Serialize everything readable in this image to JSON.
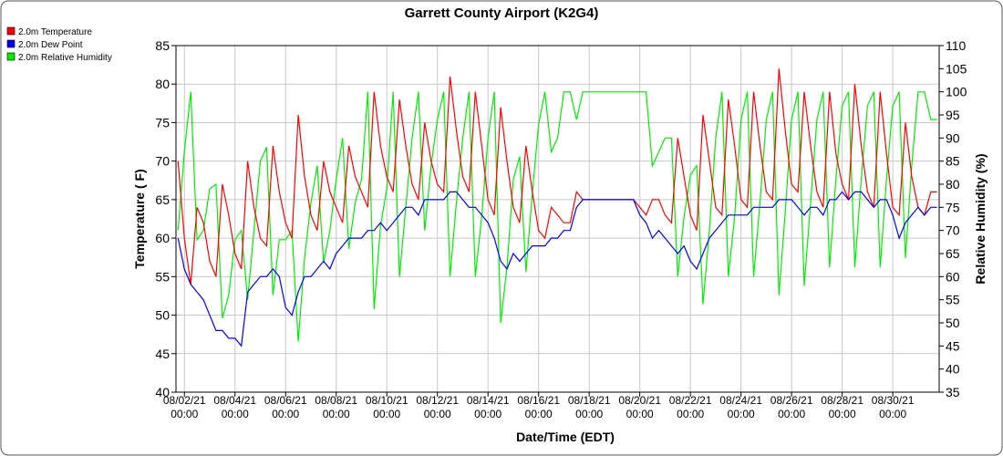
{
  "chart_data": {
    "type": "line",
    "title": "Garrett County Airport (K2G4)",
    "x_label": "Date/Time (EDT)",
    "y_label": "Temperature ( F)",
    "y2_label": "Relative Humidity (%)",
    "xlim": [
      "08/01/21 16:00",
      "08/31/21 20:00"
    ],
    "xticks": [
      "08/02/21 00:00",
      "08/04/21 00:00",
      "08/06/21 00:00",
      "08/08/21 00:00",
      "08/10/21 00:00",
      "08/12/21 00:00",
      "08/14/21 00:00",
      "08/16/21 00:00",
      "08/18/21 00:00",
      "08/20/21 00:00",
      "08/22/21 00:00",
      "08/24/21 00:00",
      "08/26/21 00:00",
      "08/28/21 00:00",
      "08/30/21 00:00"
    ],
    "ylim": [
      40,
      85
    ],
    "yticks": [
      40,
      45,
      50,
      55,
      60,
      65,
      70,
      75,
      80,
      85
    ],
    "y2lim": [
      35,
      110
    ],
    "y2ticks": [
      35,
      40,
      45,
      50,
      55,
      60,
      65,
      70,
      75,
      80,
      85,
      90,
      95,
      100,
      105,
      110
    ],
    "grid": true,
    "legend": "top-left",
    "x": [
      "08/01/21 18:00",
      "08/02/21 00:00",
      "08/02/21 06:00",
      "08/02/21 12:00",
      "08/02/21 18:00",
      "08/03/21 00:00",
      "08/03/21 06:00",
      "08/03/21 12:00",
      "08/03/21 18:00",
      "08/04/21 00:00",
      "08/04/21 06:00",
      "08/04/21 12:00",
      "08/04/21 18:00",
      "08/05/21 00:00",
      "08/05/21 06:00",
      "08/05/21 12:00",
      "08/05/21 18:00",
      "08/06/21 00:00",
      "08/06/21 06:00",
      "08/06/21 12:00",
      "08/06/21 18:00",
      "08/07/21 00:00",
      "08/07/21 06:00",
      "08/07/21 12:00",
      "08/07/21 18:00",
      "08/08/21 00:00",
      "08/08/21 06:00",
      "08/08/21 12:00",
      "08/08/21 18:00",
      "08/09/21 00:00",
      "08/09/21 06:00",
      "08/09/21 12:00",
      "08/09/21 18:00",
      "08/10/21 00:00",
      "08/10/21 06:00",
      "08/10/21 12:00",
      "08/10/21 18:00",
      "08/11/21 00:00",
      "08/11/21 06:00",
      "08/11/21 12:00",
      "08/11/21 18:00",
      "08/12/21 00:00",
      "08/12/21 06:00",
      "08/12/21 12:00",
      "08/12/21 18:00",
      "08/13/21 00:00",
      "08/13/21 06:00",
      "08/13/21 12:00",
      "08/13/21 18:00",
      "08/14/21 00:00",
      "08/14/21 06:00",
      "08/14/21 12:00",
      "08/14/21 18:00",
      "08/15/21 00:00",
      "08/15/21 06:00",
      "08/15/21 12:00",
      "08/15/21 18:00",
      "08/16/21 00:00",
      "08/16/21 06:00",
      "08/16/21 12:00",
      "08/16/21 18:00",
      "08/17/21 00:00",
      "08/17/21 06:00",
      "08/17/21 12:00",
      "08/17/21 18:00",
      "08/18/21 00:00",
      "08/18/21 06:00",
      "08/18/21 12:00",
      "08/18/21 18:00",
      "08/19/21 00:00",
      "08/19/21 06:00",
      "08/19/21 12:00",
      "08/19/21 18:00",
      "08/20/21 00:00",
      "08/20/21 06:00",
      "08/20/21 12:00",
      "08/20/21 18:00",
      "08/21/21 00:00",
      "08/21/21 06:00",
      "08/21/21 12:00",
      "08/21/21 18:00",
      "08/22/21 00:00",
      "08/22/21 06:00",
      "08/22/21 12:00",
      "08/22/21 18:00",
      "08/23/21 00:00",
      "08/23/21 06:00",
      "08/23/21 12:00",
      "08/23/21 18:00",
      "08/24/21 00:00",
      "08/24/21 06:00",
      "08/24/21 12:00",
      "08/24/21 18:00",
      "08/25/21 00:00",
      "08/25/21 06:00",
      "08/25/21 12:00",
      "08/25/21 18:00",
      "08/26/21 00:00",
      "08/26/21 06:00",
      "08/26/21 12:00",
      "08/26/21 18:00",
      "08/27/21 00:00",
      "08/27/21 06:00",
      "08/27/21 12:00",
      "08/27/21 18:00",
      "08/28/21 00:00",
      "08/28/21 06:00",
      "08/28/21 12:00",
      "08/28/21 18:00",
      "08/29/21 00:00",
      "08/29/21 06:00",
      "08/29/21 12:00",
      "08/29/21 18:00",
      "08/30/21 00:00",
      "08/30/21 06:00",
      "08/30/21 12:00",
      "08/30/21 18:00",
      "08/31/21 00:00",
      "08/31/21 06:00",
      "08/31/21 12:00",
      "08/31/21 18:00"
    ],
    "series": [
      {
        "name": "2.0m Temperature",
        "color": "#ff0000",
        "values": [
          70,
          60,
          54,
          64,
          62,
          57,
          55,
          67,
          63,
          58,
          56,
          70,
          64,
          60,
          59,
          72,
          66,
          62,
          60,
          76,
          68,
          63,
          61,
          70,
          66,
          64,
          62,
          72,
          68,
          66,
          64,
          79,
          72,
          68,
          66,
          78,
          72,
          67,
          65,
          75,
          70,
          67,
          66,
          81,
          74,
          68,
          66,
          79,
          72,
          65,
          63,
          77,
          70,
          64,
          62,
          72,
          66,
          61,
          60,
          64,
          63,
          62,
          62,
          66,
          65,
          65,
          65,
          65,
          65,
          65,
          65,
          65,
          65,
          64,
          63,
          65,
          65,
          63,
          62,
          73,
          68,
          63,
          61,
          76,
          70,
          64,
          63,
          78,
          72,
          65,
          64,
          79,
          72,
          66,
          65,
          82,
          74,
          67,
          66,
          79,
          72,
          66,
          64,
          79,
          71,
          67,
          65,
          80,
          72,
          66,
          64,
          79,
          71,
          64,
          63,
          75,
          68,
          64,
          63,
          66,
          66
        ]
      },
      {
        "name": "2.0m Dew Point",
        "color": "#0000ff",
        "values": [
          60,
          56,
          54,
          53,
          52,
          50,
          48,
          48,
          47,
          47,
          46,
          53,
          54,
          55,
          55,
          56,
          55,
          51,
          50,
          53,
          55,
          55,
          56,
          57,
          56,
          58,
          59,
          60,
          60,
          60,
          61,
          61,
          62,
          61,
          62,
          63,
          64,
          64,
          63,
          65,
          65,
          65,
          65,
          66,
          66,
          65,
          64,
          64,
          63,
          62,
          60,
          57,
          56,
          58,
          57,
          58,
          59,
          59,
          59,
          60,
          60,
          61,
          61,
          64,
          65,
          65,
          65,
          65,
          65,
          65,
          65,
          65,
          65,
          63,
          62,
          60,
          61,
          60,
          59,
          58,
          59,
          57,
          56,
          58,
          60,
          61,
          62,
          63,
          63,
          63,
          63,
          64,
          64,
          64,
          64,
          65,
          65,
          65,
          64,
          63,
          64,
          64,
          63,
          65,
          65,
          66,
          65,
          66,
          66,
          65,
          64,
          65,
          65,
          63,
          60,
          62,
          63,
          64,
          63,
          64,
          64
        ]
      },
      {
        "name": "2.0m Relative Humidity",
        "color": "#00ee00",
        "axis": "y2",
        "values": [
          70,
          87,
          100,
          68,
          70,
          79,
          80,
          51,
          56,
          68,
          70,
          55,
          70,
          85,
          88,
          56,
          68,
          68,
          70,
          46,
          64,
          76,
          84,
          63,
          70,
          81,
          90,
          66,
          76,
          81,
          100,
          53,
          71,
          79,
          100,
          60,
          75,
          90,
          100,
          70,
          84,
          94,
          100,
          60,
          76,
          90,
          100,
          60,
          73,
          90,
          100,
          50,
          62,
          81,
          86,
          61,
          78,
          93,
          100,
          87,
          90,
          100,
          100,
          94,
          100,
          100,
          100,
          100,
          100,
          100,
          100,
          100,
          100,
          100,
          100,
          84,
          87,
          90,
          90,
          60,
          73,
          82,
          84,
          54,
          70,
          90,
          100,
          60,
          73,
          94,
          100,
          60,
          76,
          94,
          100,
          56,
          74,
          94,
          100,
          58,
          76,
          94,
          100,
          62,
          81,
          97,
          100,
          62,
          81,
          97,
          100,
          62,
          81,
          97,
          100,
          64,
          84,
          100,
          100,
          94,
          94
        ]
      }
    ]
  }
}
